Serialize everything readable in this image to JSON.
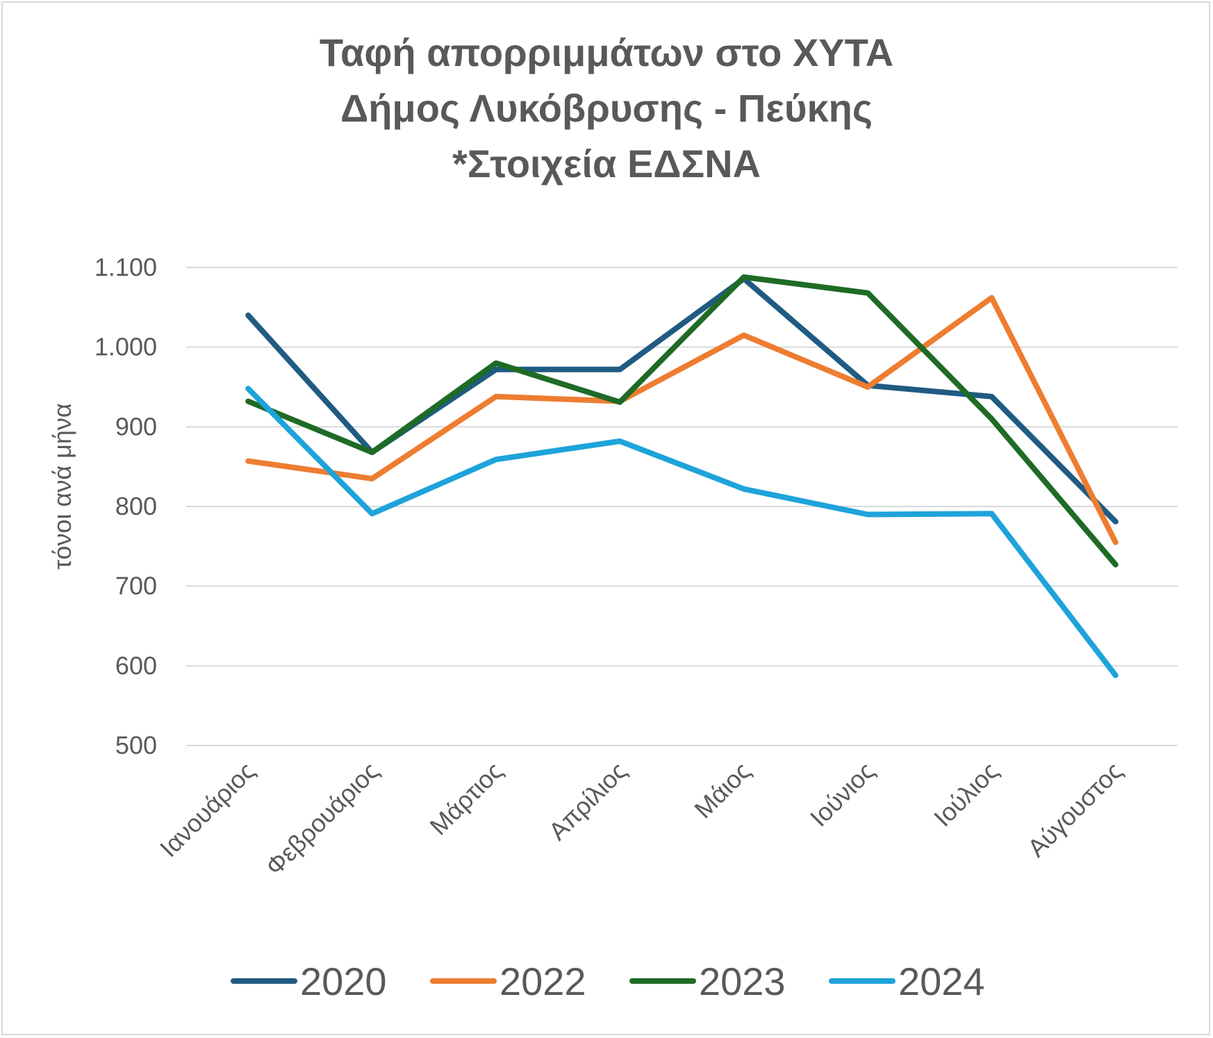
{
  "chart_data": {
    "type": "line",
    "title_lines": [
      "Ταφή απορριμμάτων στο ΧΥΤΑ",
      "Δήμος Λυκόβρυσης - Πεύκης",
      "*Στοιχεία ΕΔΣΝΑ"
    ],
    "ylabel": "τόνοι ανά μήνα",
    "xlabel": "",
    "categories": [
      "Ιανουάριος",
      "Φεβρουάριος",
      "Μάρτιος",
      "Απρίλιος",
      "Μάιος",
      "Ιούνιος",
      "Ιούλιος",
      "Αύγουστος"
    ],
    "ylim": [
      500,
      1100
    ],
    "y_ticks": [
      500,
      600,
      700,
      800,
      900,
      1000,
      1100
    ],
    "y_tick_labels": [
      "500",
      "600",
      "700",
      "800",
      "900",
      "1.000",
      "1.100"
    ],
    "grid": true,
    "legend_position": "bottom",
    "series": [
      {
        "name": "2020",
        "color": "#1f5b82",
        "values": [
          1040,
          868,
          972,
          972,
          1086,
          952,
          938,
          781
        ]
      },
      {
        "name": "2022",
        "color": "#ed7d31",
        "values": [
          857,
          835,
          938,
          932,
          1015,
          950,
          1062,
          755
        ]
      },
      {
        "name": "2023",
        "color": "#1e6b26",
        "values": [
          932,
          868,
          980,
          931,
          1088,
          1068,
          910,
          727
        ]
      },
      {
        "name": "2024",
        "color": "#1ea3da",
        "values": [
          948,
          791,
          859,
          882,
          822,
          790,
          791,
          588
        ]
      }
    ]
  }
}
